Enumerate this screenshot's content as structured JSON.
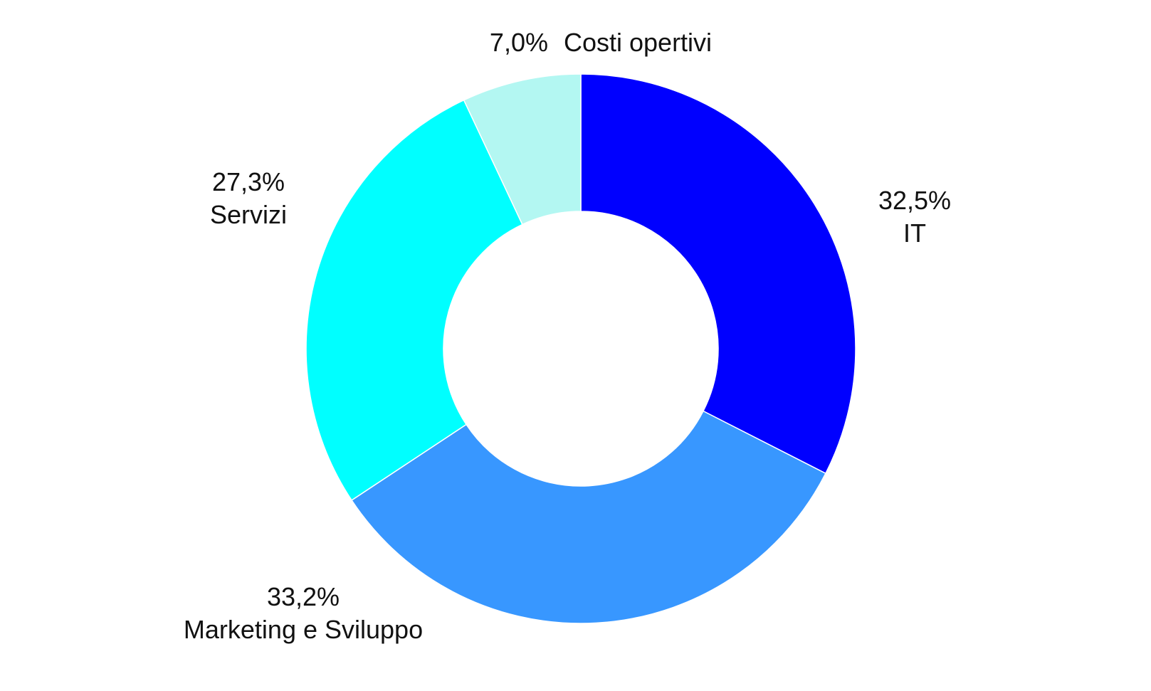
{
  "chart_data": {
    "type": "pie",
    "variant": "donut",
    "slices": [
      {
        "category": "IT",
        "value": 32.5,
        "value_label": "32,5%",
        "color": "#0000FF"
      },
      {
        "category": "Marketing e Sviluppo",
        "value": 33.2,
        "value_label": "33,2%",
        "color": "#3897FF"
      },
      {
        "category": "Servizi",
        "value": 27.3,
        "value_label": "27,3%",
        "color": "#00FFFF"
      },
      {
        "category": "Costi opertivi",
        "value": 7.0,
        "value_label": "7,0%",
        "color": "#B3F7F2"
      }
    ],
    "title": "",
    "legend": "none",
    "start_angle": "12 o'clock",
    "direction": "clockwise"
  }
}
